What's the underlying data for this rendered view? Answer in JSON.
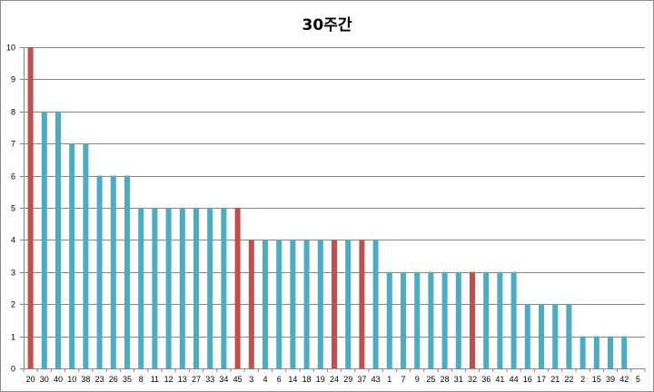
{
  "chart_data": {
    "type": "bar",
    "title": "30주간",
    "xlabel": "",
    "ylabel": "",
    "ylim": [
      0,
      10
    ],
    "yticks": [
      "0",
      "1",
      "2",
      "3",
      "4",
      "5",
      "6",
      "7",
      "8",
      "9",
      "10"
    ],
    "grid": true,
    "legend": "none",
    "categories": [
      "20",
      "30",
      "40",
      "10",
      "38",
      "23",
      "26",
      "35",
      "8",
      "11",
      "12",
      "13",
      "27",
      "33",
      "34",
      "45",
      "3",
      "4",
      "6",
      "14",
      "18",
      "19",
      "24",
      "29",
      "37",
      "43",
      "1",
      "7",
      "9",
      "25",
      "28",
      "31",
      "32",
      "36",
      "41",
      "44",
      "16",
      "17",
      "21",
      "22",
      "2",
      "15",
      "39",
      "42",
      "5"
    ],
    "values": [
      10,
      8,
      8,
      7,
      7,
      6,
      6,
      6,
      5,
      5,
      5,
      5,
      5,
      5,
      5,
      5,
      4,
      4,
      4,
      4,
      4,
      4,
      4,
      4,
      4,
      4,
      3,
      3,
      3,
      3,
      3,
      3,
      3,
      3,
      3,
      3,
      2,
      2,
      2,
      2,
      1,
      1,
      1,
      1,
      0
    ],
    "highlighted": [
      "20",
      "45",
      "3",
      "24",
      "37",
      "32"
    ],
    "colors": {
      "normal": "#4bacc6",
      "highlight": "#c0504d",
      "grid": "#868686",
      "axis": "#868686"
    }
  }
}
